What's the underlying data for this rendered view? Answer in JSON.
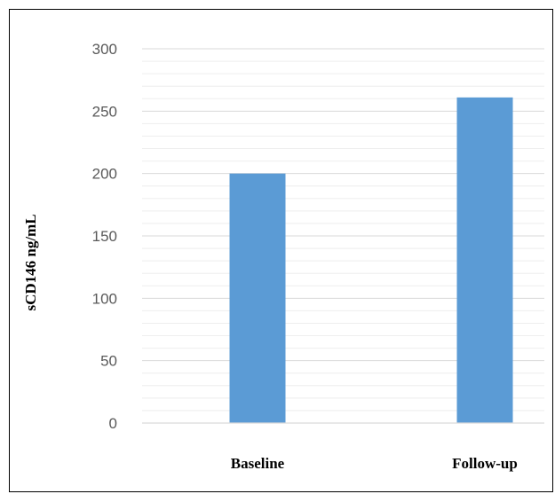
{
  "chart_data": {
    "type": "bar",
    "categories": [
      "Baseline",
      "Follow-up"
    ],
    "values": [
      200,
      261
    ],
    "xlabel": "",
    "ylabel": "sCD146 ng/mL",
    "ylim": [
      0,
      300
    ],
    "yticks": [
      "0",
      "50",
      "100",
      "150",
      "200",
      "250",
      "300"
    ],
    "grid": "on",
    "legend": "none",
    "bar_color": "#5B9BD5"
  }
}
